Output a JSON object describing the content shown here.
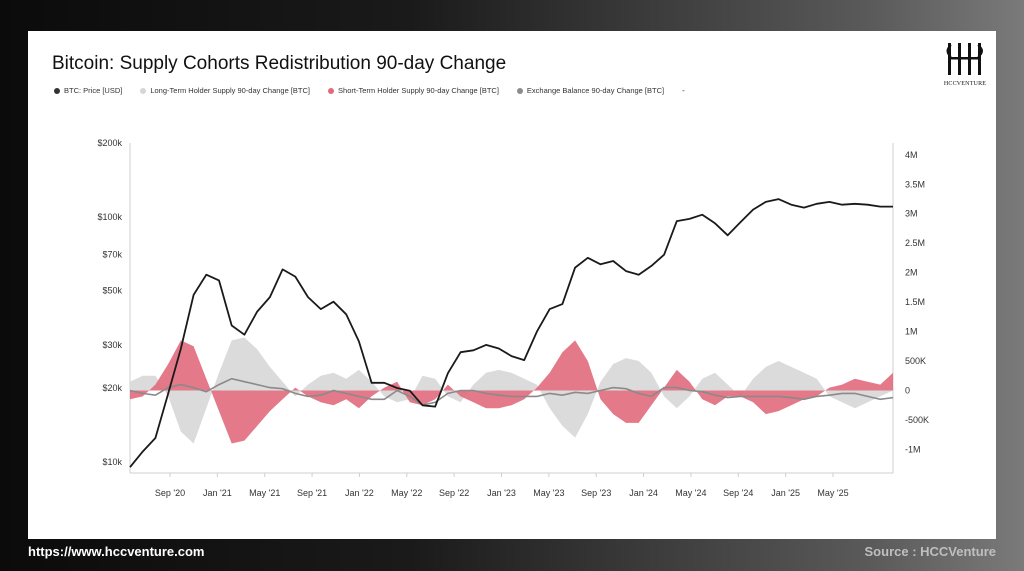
{
  "title": "Bitcoin: Supply Cohorts Redistribution 90-day Change",
  "logo_text": "HCCVENTURE",
  "footer": {
    "url": "https://www.hccventure.com",
    "source": "Source : HCCVenture"
  },
  "legend": [
    {
      "label": "BTC: Price [USD]",
      "color": "#333333"
    },
    {
      "label": "Long-Term Holder Supply 90-day Change [BTC]",
      "color": "#d6d6d6"
    },
    {
      "label": "Short-Term Holder Supply 90-day Change [BTC]",
      "color": "#e06a7c"
    },
    {
      "label": "Exchange Balance 90-day Change [BTC]",
      "color": "#8c8c8c"
    }
  ],
  "legend_extra": "-",
  "colors": {
    "price": "#1a1a1a",
    "lth": "#d9d9d9",
    "sth": "#e06a7c",
    "exchange": "#8a8a8a"
  },
  "chart_data": {
    "type": "area",
    "title": "Bitcoin: Supply Cohorts Redistribution 90-day Change",
    "x_ticks": [
      "Sep '20",
      "Jan '21",
      "May '21",
      "Sep '21",
      "Jan '22",
      "May '22",
      "Sep '22",
      "Jan '23",
      "May '23",
      "Sep '23",
      "Jan '24",
      "May '24",
      "Sep '24",
      "Jan '25",
      "May '25"
    ],
    "y_left": {
      "scale": "log",
      "range": [
        9000,
        200000
      ],
      "ticks": [
        {
          "value": 10000,
          "label": "$10k"
        },
        {
          "value": 20000,
          "label": "$20k"
        },
        {
          "value": 30000,
          "label": "$30k"
        },
        {
          "value": 50000,
          "label": "$50k"
        },
        {
          "value": 70000,
          "label": "$70k"
        },
        {
          "value": 100000,
          "label": "$100k"
        },
        {
          "value": 200000,
          "label": "$200k"
        }
      ]
    },
    "y_right": {
      "scale": "linear",
      "range": [
        -1400000,
        4200000
      ],
      "ticks": [
        {
          "value": -1000000,
          "label": "-1M"
        },
        {
          "value": -500000,
          "label": "-500K"
        },
        {
          "value": 0,
          "label": "0"
        },
        {
          "value": 500000,
          "label": "500K"
        },
        {
          "value": 1000000,
          "label": "1M"
        },
        {
          "value": 1500000,
          "label": "1.5M"
        },
        {
          "value": 2000000,
          "label": "2M"
        },
        {
          "value": 2500000,
          "label": "2.5M"
        },
        {
          "value": 3000000,
          "label": "3M"
        },
        {
          "value": 3500000,
          "label": "3.5M"
        },
        {
          "value": 4000000,
          "label": "4M"
        }
      ]
    },
    "x_months": [
      0,
      1,
      2,
      3,
      4,
      5,
      6,
      7,
      8,
      9,
      10,
      11,
      12,
      13,
      14,
      15,
      16,
      17,
      18,
      19,
      20,
      21,
      22,
      23,
      24,
      25,
      26,
      27,
      28,
      29,
      30,
      31,
      32,
      33,
      34,
      35,
      36,
      37,
      38,
      39,
      40,
      41,
      42,
      43,
      44,
      45,
      46,
      47,
      48,
      49,
      50,
      51,
      52,
      53,
      54,
      55,
      56,
      57,
      58,
      59,
      60
    ],
    "series": [
      {
        "name": "BTC: Price [USD]",
        "axis": "left",
        "values": [
          9500,
          11000,
          12500,
          19000,
          29000,
          48000,
          58000,
          55000,
          36000,
          33000,
          41000,
          47000,
          61000,
          57000,
          47000,
          42000,
          45000,
          40000,
          31000,
          21000,
          21000,
          20000,
          19500,
          17000,
          16800,
          23000,
          28000,
          28500,
          30000,
          29000,
          27000,
          26000,
          34000,
          42000,
          44000,
          62000,
          68000,
          64000,
          66000,
          60000,
          58000,
          63000,
          70000,
          96000,
          98000,
          102000,
          94000,
          84000,
          95000,
          107000,
          115000,
          118000,
          112000,
          109000,
          113000,
          115000,
          112000,
          113000,
          112000,
          110000,
          110000
        ]
      },
      {
        "name": "Long-Term Holder Supply 90-day Change [BTC]",
        "axis": "right",
        "values": [
          150000,
          250000,
          250000,
          -100000,
          -700000,
          -900000,
          -300000,
          300000,
          850000,
          900000,
          700000,
          400000,
          150000,
          -100000,
          100000,
          250000,
          300000,
          200000,
          350000,
          150000,
          -100000,
          -200000,
          -150000,
          250000,
          200000,
          -100000,
          -200000,
          100000,
          300000,
          350000,
          300000,
          200000,
          100000,
          -300000,
          -600000,
          -800000,
          -400000,
          150000,
          450000,
          550000,
          500000,
          300000,
          -100000,
          -300000,
          -100000,
          200000,
          300000,
          100000,
          -100000,
          200000,
          400000,
          500000,
          400000,
          300000,
          200000,
          -100000,
          -200000,
          -300000,
          -200000,
          -100000,
          0
        ]
      },
      {
        "name": "Short-Term Holder Supply 90-day Change [BTC]",
        "axis": "right",
        "values": [
          -150000,
          -100000,
          100000,
          450000,
          850000,
          750000,
          200000,
          -350000,
          -900000,
          -850000,
          -600000,
          -350000,
          -150000,
          50000,
          -100000,
          -200000,
          -250000,
          -150000,
          -300000,
          -100000,
          50000,
          150000,
          -200000,
          -250000,
          -150000,
          100000,
          -100000,
          -200000,
          -300000,
          -300000,
          -250000,
          -150000,
          50000,
          300000,
          650000,
          850000,
          500000,
          -150000,
          -400000,
          -550000,
          -550000,
          -250000,
          50000,
          350000,
          150000,
          -150000,
          -250000,
          -100000,
          -100000,
          -200000,
          -400000,
          -350000,
          -250000,
          -150000,
          -100000,
          50000,
          100000,
          200000,
          150000,
          100000,
          300000
        ]
      },
      {
        "name": "Exchange Balance 90-day Change [BTC]",
        "axis": "right",
        "values": [
          0,
          -50000,
          -80000,
          50000,
          100000,
          50000,
          -20000,
          100000,
          200000,
          150000,
          100000,
          50000,
          30000,
          -50000,
          -100000,
          -80000,
          0,
          -50000,
          -100000,
          -150000,
          -150000,
          0,
          -100000,
          -250000,
          -200000,
          -50000,
          0,
          0,
          -50000,
          -80000,
          -100000,
          -100000,
          -100000,
          -50000,
          -80000,
          -30000,
          -50000,
          0,
          50000,
          30000,
          -50000,
          -100000,
          50000,
          50000,
          0,
          -20000,
          -80000,
          -120000,
          -100000,
          -100000,
          -100000,
          -100000,
          -120000,
          -150000,
          -100000,
          -80000,
          -50000,
          -50000,
          -100000,
          -150000,
          -120000
        ]
      }
    ],
    "grid": false,
    "legend_position": "top-left"
  }
}
